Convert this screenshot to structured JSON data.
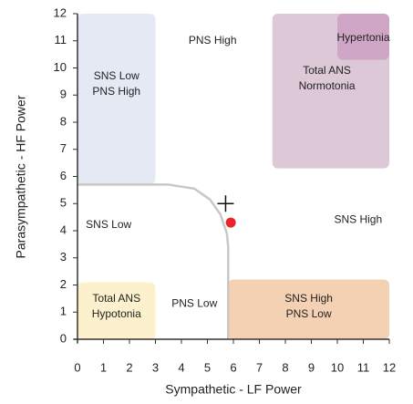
{
  "chart_data": {
    "type": "scatter",
    "xlabel": "Sympathetic - LF Power",
    "ylabel": "Parasympathetic - HF Power",
    "xlim": [
      0,
      12
    ],
    "ylim": [
      0,
      12
    ],
    "xticks": [
      0,
      1,
      2,
      3,
      4,
      5,
      6,
      7,
      8,
      9,
      10,
      11,
      12
    ],
    "yticks": [
      0,
      1,
      2,
      3,
      4,
      5,
      6,
      7,
      8,
      9,
      10,
      11,
      12
    ],
    "regions": [
      {
        "label": [
          "SNS Low",
          "PNS High"
        ],
        "x": [
          0,
          3
        ],
        "y": [
          5.7,
          12
        ],
        "color": "#e4e9f4",
        "label_at": [
          1.5,
          9.4
        ]
      },
      {
        "label": [
          "Total ANS",
          "Normotonia"
        ],
        "x": [
          7.5,
          12
        ],
        "y": [
          6.3,
          12
        ],
        "color": "#dcc8d6",
        "label_at": [
          9.6,
          9.6
        ]
      },
      {
        "label": [
          "Hypertonia"
        ],
        "x": [
          10,
          12
        ],
        "y": [
          10.3,
          12
        ],
        "color": "#cfa6c6",
        "label_at": [
          11,
          11.1
        ]
      },
      {
        "label": [
          "Total ANS",
          "Hypotonia"
        ],
        "x": [
          0,
          3
        ],
        "y": [
          0,
          2.1
        ],
        "color": "#fdf1cd",
        "label_at": [
          1.5,
          1.2
        ]
      },
      {
        "label": [
          "SNS High",
          "PNS Low"
        ],
        "x": [
          5.8,
          12
        ],
        "y": [
          0,
          2.2
        ],
        "color": "#f4d1b3",
        "label_at": [
          8.9,
          1.2
        ]
      },
      {
        "label": [
          "PNS High"
        ],
        "label_at": [
          5.2,
          11
        ]
      },
      {
        "label": [
          "SNS Low"
        ],
        "label_at": [
          1.2,
          4.2
        ]
      },
      {
        "label": [
          "SNS High"
        ],
        "label_at": [
          10.8,
          4.4
        ]
      },
      {
        "label": [
          "PNS Low"
        ],
        "label_at": [
          4.5,
          1.3
        ]
      }
    ],
    "boundary": {
      "x": [
        0,
        3.5,
        4.5,
        5.1,
        5.5,
        5.75,
        5.8,
        5.8
      ],
      "y": [
        5.7,
        5.7,
        5.55,
        5.15,
        4.6,
        3.9,
        3.4,
        0
      ],
      "color": "#c8c8c8"
    },
    "points": {
      "x": [
        5.9
      ],
      "y": [
        4.3
      ],
      "color": "#e8262a"
    },
    "crosshair": {
      "x": 5.7,
      "y": 5.0
    }
  }
}
